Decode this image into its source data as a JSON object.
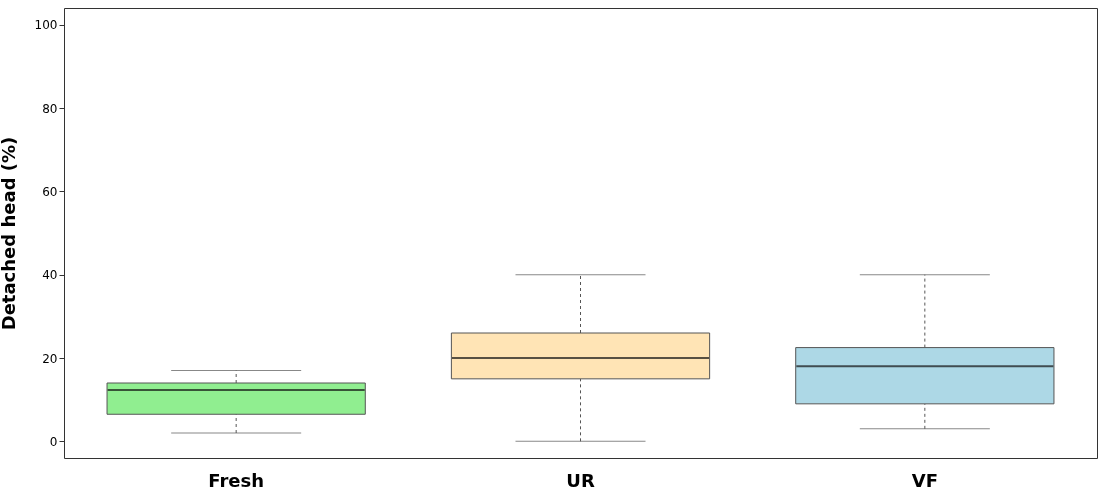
{
  "chart_data": {
    "type": "box",
    "ylabel": "Detached head  (%)",
    "categories": [
      "Fresh",
      "UR",
      "VF"
    ],
    "colors": [
      "#90ee90",
      "#ffe4b5",
      "#add8e6"
    ],
    "boxes": [
      {
        "low": 2,
        "q1": 6.5,
        "median": 12.3,
        "q3": 14,
        "high": 17
      },
      {
        "low": 0,
        "q1": 15,
        "median": 20,
        "q3": 26,
        "high": 40
      },
      {
        "low": 3,
        "q1": 9,
        "median": 18,
        "q3": 22.5,
        "high": 40
      }
    ],
    "ylim": [
      -4,
      104
    ],
    "yticks": [
      0,
      20,
      40,
      60,
      80,
      100
    ]
  }
}
